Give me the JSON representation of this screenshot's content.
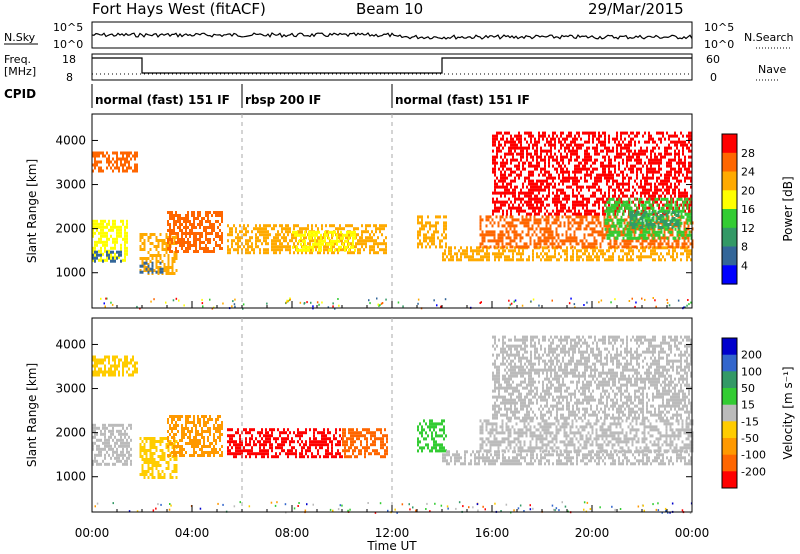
{
  "header": {
    "title": "Fort Hays West (fitACF)",
    "beam": "Beam 10",
    "date": "29/Mar/2015"
  },
  "noise_panel": {
    "left_label": "N.Sky",
    "right_label": "N.Search",
    "left_ticks": [
      "10^5",
      "10^0"
    ],
    "right_ticks": [
      "10^5",
      "10^0"
    ]
  },
  "freq_panel": {
    "left_label_1": "Freq.",
    "left_label_2": "[MHz]",
    "right_label": "Nave",
    "left_ticks": [
      "18",
      "8"
    ],
    "right_ticks": [
      "60",
      "0"
    ]
  },
  "cpid_panel": {
    "label": "CPID",
    "segments": [
      {
        "label": "normal (fast) 151 IF",
        "start_hour": 0,
        "end_hour": 6
      },
      {
        "label": "rbsp 200 IF",
        "start_hour": 6,
        "end_hour": 12
      },
      {
        "label": "normal (fast) 151 IF",
        "start_hour": 12,
        "end_hour": 24
      }
    ]
  },
  "chart_data": [
    {
      "type": "heatmap",
      "name": "power",
      "ylabel": "Slant Range [km]",
      "colorbar_label": "Power [dB]",
      "colorbar_ticks": [
        "28",
        "24",
        "20",
        "16",
        "12",
        "8",
        "4"
      ],
      "colors": [
        "#ff0000",
        "#ff6600",
        "#ffaa00",
        "#ffff00",
        "#33cc33",
        "#339966",
        "#336699",
        "#0000ff"
      ],
      "y_ticks": [
        1000,
        2000,
        3000,
        4000
      ],
      "ylim": [
        200,
        4600
      ],
      "xlim": [
        0,
        24
      ],
      "regions": [
        {
          "t0": 0.0,
          "t1": 1.4,
          "r0": 1300,
          "r1": 2200,
          "level": 3
        },
        {
          "t0": 0.0,
          "t1": 1.2,
          "r0": 1250,
          "r1": 1500,
          "level": 6
        },
        {
          "t0": 0.0,
          "t1": 1.8,
          "r0": 3300,
          "r1": 3750,
          "level": 1
        },
        {
          "t0": 1.9,
          "t1": 3.4,
          "r0": 1000,
          "r1": 1900,
          "level": 2
        },
        {
          "t0": 1.9,
          "t1": 2.8,
          "r0": 1000,
          "r1": 1250,
          "level": 6
        },
        {
          "t0": 3.0,
          "t1": 5.2,
          "r0": 1500,
          "r1": 2400,
          "level": 1
        },
        {
          "t0": 5.4,
          "t1": 11.8,
          "r0": 1450,
          "r1": 2100,
          "level": 2
        },
        {
          "t0": 8.0,
          "t1": 10.5,
          "r0": 1500,
          "r1": 1950,
          "level": 3
        },
        {
          "t0": 13.0,
          "t1": 14.2,
          "r0": 1600,
          "r1": 2300,
          "level": 2
        },
        {
          "t0": 14.0,
          "t1": 24.0,
          "r0": 1300,
          "r1": 1600,
          "level": 2
        },
        {
          "t0": 15.5,
          "t1": 24.0,
          "r0": 1600,
          "r1": 2300,
          "level": 1
        },
        {
          "t0": 16.0,
          "t1": 24.0,
          "r0": 2300,
          "r1": 4200,
          "level": 0
        },
        {
          "t0": 20.5,
          "t1": 24.0,
          "r0": 1800,
          "r1": 2700,
          "level": 4
        },
        {
          "t0": 21.5,
          "t1": 23.5,
          "r0": 2000,
          "r1": 2400,
          "level": 5
        }
      ]
    },
    {
      "type": "heatmap",
      "name": "velocity",
      "ylabel": "Slant Range [km]",
      "colorbar_label": "Velocity [m s⁻¹]",
      "colorbar_ticks": [
        "200",
        "100",
        "50",
        "15",
        "-15",
        "-50",
        "-100",
        "-200"
      ],
      "colors": [
        "#0000cc",
        "#3366cc",
        "#339966",
        "#33cc33",
        "#bbbbbb",
        "#ffcc00",
        "#ff9900",
        "#ff6600",
        "#ff0000"
      ],
      "y_ticks": [
        1000,
        2000,
        3000,
        4000
      ],
      "ylim": [
        200,
        4600
      ],
      "xlim": [
        0,
        24
      ],
      "regions": [
        {
          "t0": 0.0,
          "t1": 1.6,
          "r0": 1300,
          "r1": 2200,
          "level": 4
        },
        {
          "t0": 0.0,
          "t1": 1.8,
          "r0": 3300,
          "r1": 3750,
          "level": 5
        },
        {
          "t0": 1.9,
          "t1": 3.4,
          "r0": 1000,
          "r1": 1900,
          "level": 5
        },
        {
          "t0": 3.0,
          "t1": 5.2,
          "r0": 1500,
          "r1": 2400,
          "level": 6
        },
        {
          "t0": 5.4,
          "t1": 10.0,
          "r0": 1450,
          "r1": 2100,
          "level": 8
        },
        {
          "t0": 10.0,
          "t1": 11.8,
          "r0": 1450,
          "r1": 2100,
          "level": 7
        },
        {
          "t0": 13.0,
          "t1": 14.2,
          "r0": 1600,
          "r1": 2300,
          "level": 3
        },
        {
          "t0": 14.0,
          "t1": 24.0,
          "r0": 1300,
          "r1": 1600,
          "level": 4
        },
        {
          "t0": 15.5,
          "t1": 24.0,
          "r0": 1600,
          "r1": 2300,
          "level": 4
        },
        {
          "t0": 16.0,
          "t1": 24.0,
          "r0": 2300,
          "r1": 4200,
          "level": 4
        }
      ]
    }
  ],
  "x_axis": {
    "ticks": [
      "00:00",
      "04:00",
      "08:00",
      "12:00",
      "16:00",
      "20:00",
      "00:00"
    ],
    "label": "Time UT"
  }
}
